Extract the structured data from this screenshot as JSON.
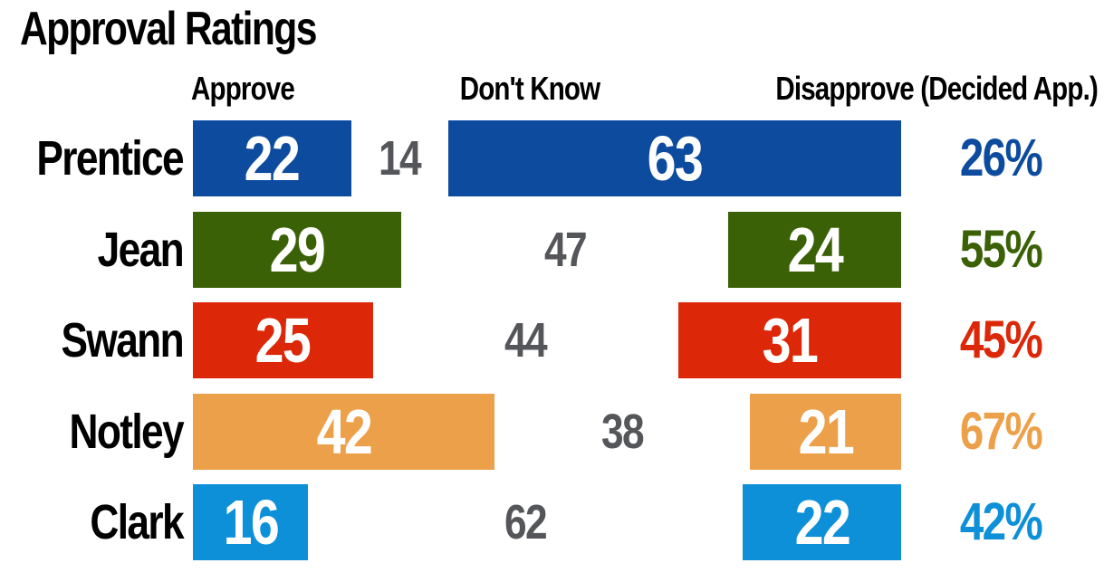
{
  "title": "Approval Ratings",
  "columns": {
    "approve": "Approve",
    "dont_know": "Don't Know",
    "disapprove": "Disapprove (Decided App.)"
  },
  "colors": {
    "prentice": "#0d4b9e",
    "jean": "#3b6107",
    "swann": "#dc2708",
    "notley": "#eda04a",
    "clark": "#0d90d8",
    "dont_know_text": "#55565a",
    "title_text": "#000000"
  },
  "chart_data": {
    "type": "bar",
    "title": "Approval Ratings",
    "categories": [
      "Prentice",
      "Jean",
      "Swann",
      "Notley",
      "Clark"
    ],
    "series": [
      {
        "name": "Approve",
        "values": [
          22,
          29,
          25,
          42,
          16
        ]
      },
      {
        "name": "Don't Know",
        "values": [
          14,
          47,
          44,
          38,
          62
        ]
      },
      {
        "name": "Disapprove",
        "values": [
          63,
          24,
          31,
          21,
          22
        ]
      },
      {
        "name": "Decided Approval",
        "values": [
          "26%",
          "55%",
          "45%",
          "67%",
          "42%"
        ]
      }
    ],
    "value_unit": "percent",
    "axis_range": [
      0,
      100
    ],
    "grid": false,
    "legend_position": "column-headers",
    "layout_note": "approve bars anchored left, disapprove bars anchored right, don't-know shown as number between them",
    "rows": [
      {
        "name": "Prentice",
        "approve": 22,
        "dont_know": 14,
        "disapprove": 63,
        "decided": "26%",
        "color": "#0d4b9e"
      },
      {
        "name": "Jean",
        "approve": 29,
        "dont_know": 47,
        "disapprove": 24,
        "decided": "55%",
        "color": "#3b6107"
      },
      {
        "name": "Swann",
        "approve": 25,
        "dont_know": 44,
        "disapprove": 31,
        "decided": "45%",
        "color": "#dc2708"
      },
      {
        "name": "Notley",
        "approve": 42,
        "dont_know": 38,
        "disapprove": 21,
        "decided": "67%",
        "color": "#eda04a"
      },
      {
        "name": "Clark",
        "approve": 16,
        "dont_know": 62,
        "disapprove": 22,
        "decided": "42%",
        "color": "#0d90d8"
      }
    ]
  }
}
